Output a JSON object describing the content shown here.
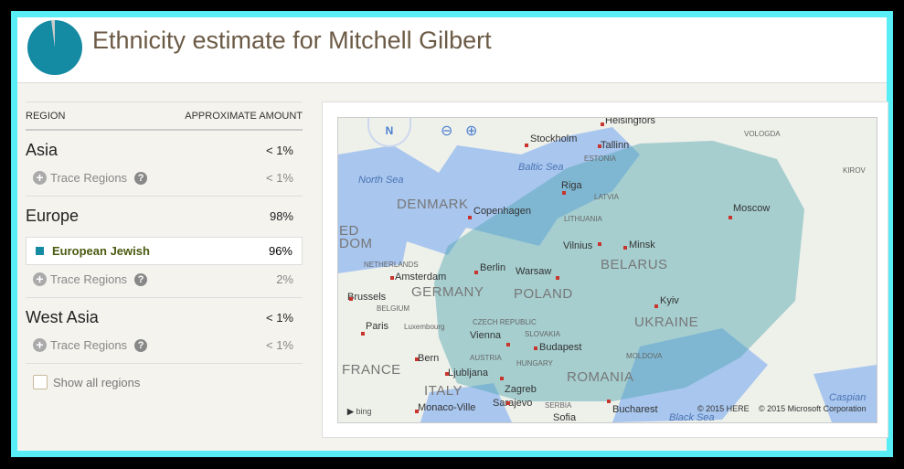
{
  "header": {
    "title": "Ethnicity estimate for Mitchell Gilbert",
    "pie_icon": "ethnicity-pie-chart",
    "pie_main_percent": 98,
    "pie_color": "#148aa3"
  },
  "table": {
    "col_region": "REGION",
    "col_amount": "APPROXIMATE AMOUNT",
    "regions": [
      {
        "name": "Asia",
        "amount": "< 1%",
        "trace_label": "Trace Regions",
        "trace_amount": "< 1%"
      },
      {
        "name": "Europe",
        "amount": "98%",
        "sub": {
          "name": "European Jewish",
          "amount": "96%",
          "color": "#148aa3"
        },
        "trace_label": "Trace Regions",
        "trace_amount": "2%"
      },
      {
        "name": "West Asia",
        "amount": "< 1%",
        "trace_label": "Trace Regions",
        "trace_amount": "< 1%"
      }
    ],
    "show_all": "Show all regions"
  },
  "map": {
    "compass": "N",
    "bing": "bing",
    "copyright_here": "© 2015 HERE",
    "copyright_ms": "© 2015 Microsoft Corporation",
    "overlay_color": "#4ea5b0",
    "labels": [
      {
        "text": "Helsingfors",
        "type": "city"
      },
      {
        "text": "Stockholm",
        "type": "city"
      },
      {
        "text": "Tallinn",
        "type": "city"
      },
      {
        "text": "ESTONIA",
        "type": "small"
      },
      {
        "text": "Baltic Sea",
        "type": "sea"
      },
      {
        "text": "North Sea",
        "type": "sea"
      },
      {
        "text": "Riga",
        "type": "city"
      },
      {
        "text": "LATVIA",
        "type": "small"
      },
      {
        "text": "DENMARK",
        "type": "country"
      },
      {
        "text": "Copenhagen",
        "type": "city"
      },
      {
        "text": "LITHUANIA",
        "type": "small"
      },
      {
        "text": "Vilnius",
        "type": "city"
      },
      {
        "text": "Minsk",
        "type": "city"
      },
      {
        "text": "Moscow",
        "type": "city"
      },
      {
        "text": "VOLOGDA",
        "type": "small"
      },
      {
        "text": "KIROV",
        "type": "small"
      },
      {
        "text": "BELARUS",
        "type": "country"
      },
      {
        "text": "Berlin",
        "type": "city"
      },
      {
        "text": "Warsaw",
        "type": "city"
      },
      {
        "text": "Amsterdam",
        "type": "city"
      },
      {
        "text": "NETHERLANDS",
        "type": "small"
      },
      {
        "text": "GERMANY",
        "type": "country"
      },
      {
        "text": "POLAND",
        "type": "country"
      },
      {
        "text": "Brussels",
        "type": "city"
      },
      {
        "text": "BELGIUM",
        "type": "small"
      },
      {
        "text": "Kyiv",
        "type": "city"
      },
      {
        "text": "UKRAINE",
        "type": "country"
      },
      {
        "text": "Paris",
        "type": "city"
      },
      {
        "text": "Luxembourg",
        "type": "small"
      },
      {
        "text": "CZECH REPUBLIC",
        "type": "small"
      },
      {
        "text": "SLOVAKIA",
        "type": "small"
      },
      {
        "text": "Vienna",
        "type": "city"
      },
      {
        "text": "Budapest",
        "type": "city"
      },
      {
        "text": "AUSTRIA",
        "type": "small"
      },
      {
        "text": "Bern",
        "type": "city"
      },
      {
        "text": "HUNGARY",
        "type": "small"
      },
      {
        "text": "MOLDOVA",
        "type": "small"
      },
      {
        "text": "FRANCE",
        "type": "country"
      },
      {
        "text": "Ljubljana",
        "type": "city"
      },
      {
        "text": "ROMANIA",
        "type": "country"
      },
      {
        "text": "ITALY",
        "type": "country"
      },
      {
        "text": "Zagreb",
        "type": "city"
      },
      {
        "text": "Monaco-Ville",
        "type": "city"
      },
      {
        "text": "Sarajevo",
        "type": "city"
      },
      {
        "text": "SERBIA",
        "type": "small"
      },
      {
        "text": "Bucharest",
        "type": "city"
      },
      {
        "text": "Sofia",
        "type": "city"
      },
      {
        "text": "Black Sea",
        "type": "sea"
      },
      {
        "text": "Caspian",
        "type": "sea"
      },
      {
        "text": "ED",
        "type": "country"
      },
      {
        "text": "DOM",
        "type": "country"
      }
    ]
  }
}
